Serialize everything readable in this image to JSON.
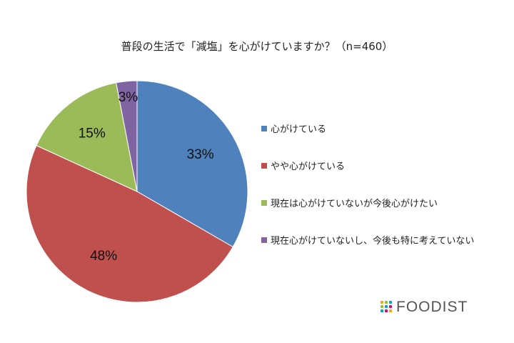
{
  "chart_data": {
    "type": "pie",
    "title": "普段の生活で「減塩」を心がけていますか？（n=460）",
    "categories": [
      "心がけている",
      "やや心がけている",
      "現在は心がけていないが今後心がけたい",
      "現在心がけていないし、今後も特に考えていない"
    ],
    "values": [
      33,
      48,
      15,
      3
    ],
    "labels": [
      "33%",
      "48%",
      "15%",
      "3%"
    ],
    "colors": [
      "#4F81BD",
      "#C0504D",
      "#9BBB59",
      "#8064A2"
    ],
    "legend_position": "right"
  },
  "branding": {
    "logo_text": "FOODIST",
    "logo_dot_colors": [
      "#F2A900",
      "#8CC63F",
      "#00A0E9",
      "#E4007F"
    ]
  }
}
